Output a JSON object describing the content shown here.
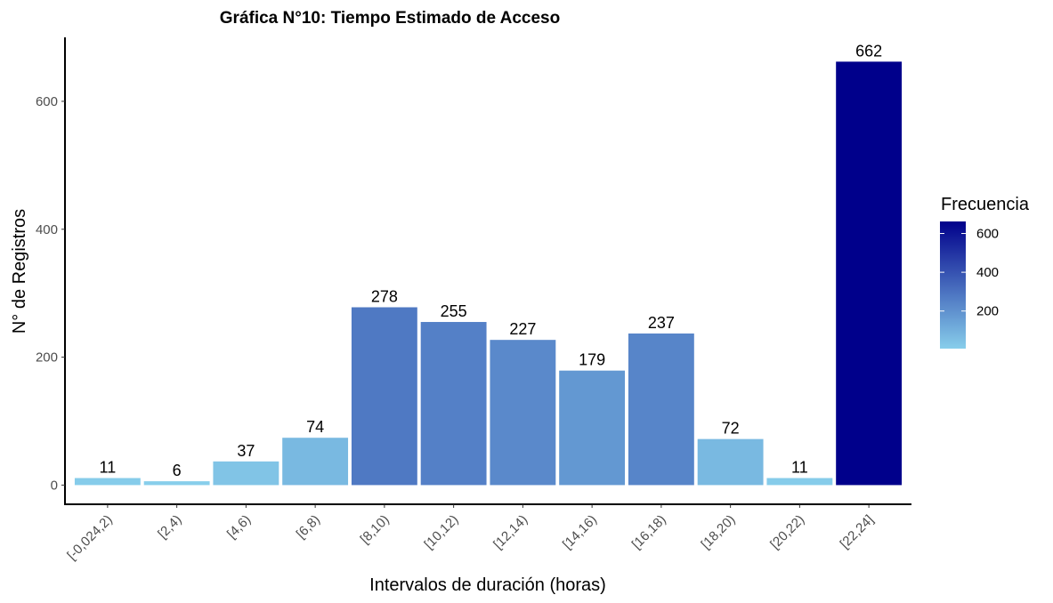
{
  "chart_data": {
    "type": "bar",
    "title": "Gráfica N°10: Tiempo Estimado de Acceso",
    "xlabel": "Intervalos de duración (horas)",
    "ylabel": "N° de Registros",
    "categories": [
      "[-0,024,2)",
      "[2,4)",
      "[4,6)",
      "[6,8)",
      "[8,10)",
      "[10,12)",
      "[12,14)",
      "[14,16)",
      "[16,18)",
      "[18,20)",
      "[20,22)",
      "[22,24]"
    ],
    "values": [
      11,
      6,
      37,
      74,
      278,
      255,
      227,
      179,
      237,
      72,
      11,
      662
    ],
    "data_labels": [
      "11",
      "6",
      "37",
      "74",
      "278",
      "255",
      "227",
      "179",
      "237",
      "72",
      "11",
      "662"
    ],
    "ylim": [
      -30,
      700
    ],
    "yticks": [
      0,
      200,
      400,
      600
    ],
    "ytick_labels": [
      "0",
      "200",
      "400",
      "600"
    ],
    "grid": false,
    "legend": {
      "title": "Frecuencia",
      "position": "right",
      "type": "colorbar",
      "range": [
        6,
        662
      ],
      "ticks": [
        200,
        400,
        600
      ],
      "tick_labels": [
        "200",
        "400",
        "600"
      ],
      "color_low": "#87CEEB",
      "color_high": "#00008B"
    }
  }
}
